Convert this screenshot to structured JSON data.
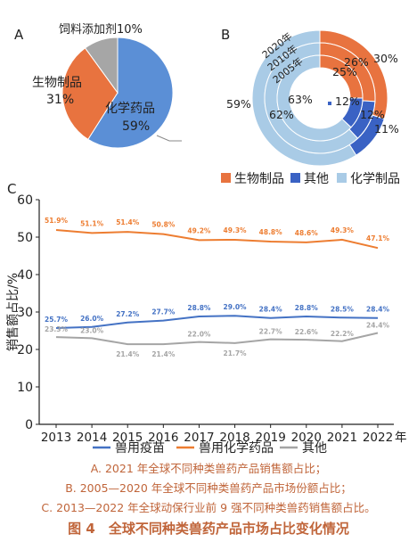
{
  "panel_labels": {
    "a": "A",
    "b": "B",
    "c": "C"
  },
  "colors": {
    "bio": "#e8733f",
    "other_b": "#3a62c4",
    "chem_b": "#a9cbe6",
    "pie_chem": "#5b8fd6",
    "pie_bio": "#e8733f",
    "pie_feed": "#a6a6a6",
    "vaccine": "#4472c4",
    "chemdrug": "#ed7d31",
    "other_c": "#a5a5a5",
    "caption": "#c0653a"
  },
  "pie_a": {
    "slices": [
      {
        "name": "化学药品",
        "value": 59,
        "label": "59%",
        "color_key": "pie_chem"
      },
      {
        "name": "生物制品",
        "value": 31,
        "label": "31%",
        "color_key": "pie_bio"
      },
      {
        "name": "饲料添加剂",
        "value": 10,
        "label": "10%",
        "color_key": "pie_feed"
      }
    ]
  },
  "donut_b": {
    "rings": [
      {
        "year": "2020年",
        "bio": 30,
        "other": 11,
        "chem": 59,
        "bio_label": "30%",
        "other_label": "11%",
        "chem_label": "59%"
      },
      {
        "year": "2010年",
        "bio": 26,
        "other": 12,
        "chem": 62,
        "bio_label": "26%",
        "other_label": "12%",
        "chem_label": "62%"
      },
      {
        "year": "2005年",
        "bio": 25,
        "other": 12,
        "chem": 63,
        "bio_label": "25%",
        "other_label": "12%",
        "chem_label": "63%"
      }
    ],
    "legend": [
      {
        "label": "生物制品",
        "color_key": "bio"
      },
      {
        "label": "其他",
        "color_key": "other_b"
      },
      {
        "label": "化学制品",
        "color_key": "chem_b"
      }
    ]
  },
  "chart_data": [
    {
      "type": "pie",
      "panel": "A",
      "categories": [
        "化学药品",
        "生物制品",
        "饲料添加剂"
      ],
      "values": [
        59,
        31,
        10
      ]
    },
    {
      "type": "pie",
      "panel": "B",
      "categories": [
        "生物制品",
        "其他",
        "化学制品"
      ],
      "series": [
        {
          "name": "2020年",
          "values": [
            30,
            11,
            59
          ]
        },
        {
          "name": "2010年",
          "values": [
            26,
            12,
            62
          ]
        },
        {
          "name": "2005年",
          "values": [
            25,
            12,
            63
          ]
        }
      ]
    },
    {
      "type": "line",
      "panel": "C",
      "x": [
        2013,
        2014,
        2015,
        2016,
        2017,
        2018,
        2019,
        2020,
        2021,
        2022
      ],
      "x_labels": [
        "2013",
        "2014",
        "2015",
        "2016",
        "2017",
        "2018",
        "2019",
        "2020",
        "2021",
        "2022"
      ],
      "x_unit": "年",
      "ylabel": "销售额占比/%",
      "ylim": [
        0,
        60
      ],
      "yticks": [
        0,
        10,
        20,
        30,
        40,
        50,
        60
      ],
      "grid": false,
      "legend_position": "bottom",
      "series": [
        {
          "name": "兽用疫苗",
          "color_key": "vaccine",
          "values": [
            25.7,
            26.0,
            27.2,
            27.7,
            28.8,
            29.0,
            28.4,
            28.8,
            28.5,
            28.4
          ],
          "labels": [
            "25.7%",
            "26.0%",
            "27.2%",
            "27.7%",
            "28.8%",
            "29.0%",
            "28.4%",
            "28.8%",
            "28.5%",
            "28.4%"
          ]
        },
        {
          "name": "兽用化学药品",
          "color_key": "chemdrug",
          "values": [
            51.9,
            51.1,
            51.4,
            50.8,
            49.2,
            49.3,
            48.8,
            48.6,
            49.3,
            47.1
          ],
          "labels": [
            "51.9%",
            "51.1%",
            "51.4%",
            "50.8%",
            "49.2%",
            "49.3%",
            "48.8%",
            "48.6%",
            "49.3%",
            "47.1%"
          ]
        },
        {
          "name": "其他",
          "color_key": "other_c",
          "values": [
            23.3,
            23.0,
            21.4,
            21.4,
            22.0,
            21.7,
            22.7,
            22.6,
            22.2,
            24.4
          ],
          "labels": [
            "23.3%",
            "23.0%",
            "21.4%",
            "21.4%",
            "22.0%",
            "21.7%",
            "22.7%",
            "22.6%",
            "22.2%",
            "24.4%"
          ]
        }
      ]
    }
  ],
  "caption": {
    "line_a": "A. 2021 年全球不同种类兽药产品销售额占比；",
    "line_b": "B. 2005—2020 年全球不同种类兽药产品市场份额占比；",
    "line_c": "C. 2013—2022 年全球动保行业前 9 强不同种类兽药销售额占比。",
    "title": "图 4　全球不同种类兽药产品市场占比变化情况"
  }
}
